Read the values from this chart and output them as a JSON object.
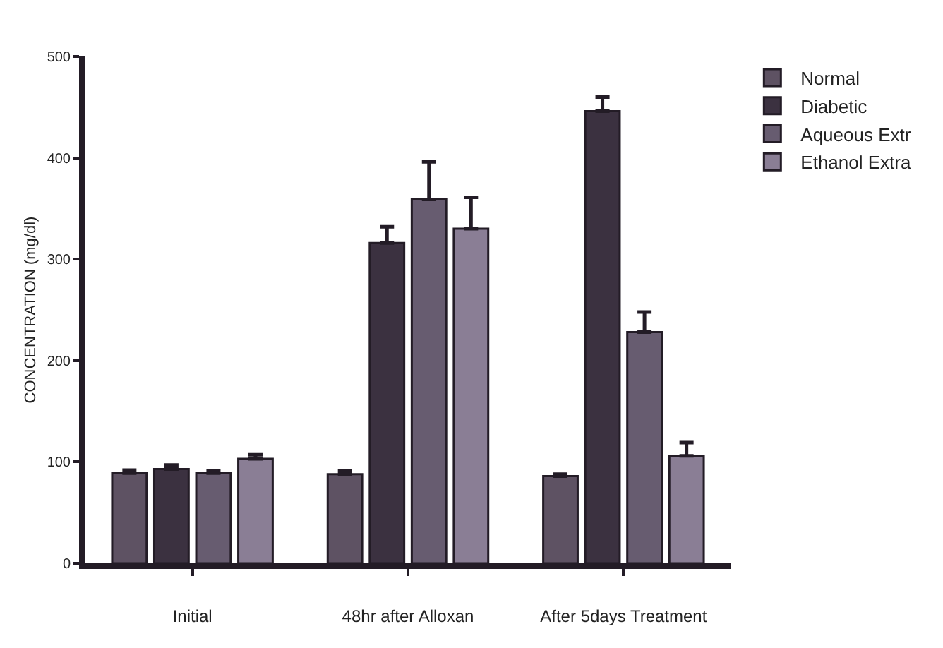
{
  "chart_data": {
    "type": "bar",
    "ylabel": "CONCENTRATION (mg/dl)",
    "categories": [
      "Initial",
      "48hr after Alloxan",
      "After 5days Treatment"
    ],
    "series": [
      {
        "name": "Normal",
        "color": "#5e5263",
        "values": [
          89,
          88,
          86
        ],
        "errors": [
          3,
          3,
          2
        ]
      },
      {
        "name": "Diabetic",
        "color": "#3b3140",
        "values": [
          93,
          316,
          446
        ],
        "errors": [
          4,
          16,
          14
        ]
      },
      {
        "name": "Aqueous Extr",
        "color": "#675c70",
        "values": [
          89,
          359,
          228
        ],
        "errors": [
          2,
          37,
          20
        ]
      },
      {
        "name": "Ethanol Extra",
        "color": "#8a7e95",
        "values": [
          103,
          330,
          106
        ],
        "errors": [
          4,
          31,
          13
        ]
      }
    ],
    "ylim": [
      0,
      500
    ],
    "yticks": [
      0,
      100,
      200,
      300,
      400,
      500
    ],
    "grid": false,
    "legend": "top right"
  }
}
